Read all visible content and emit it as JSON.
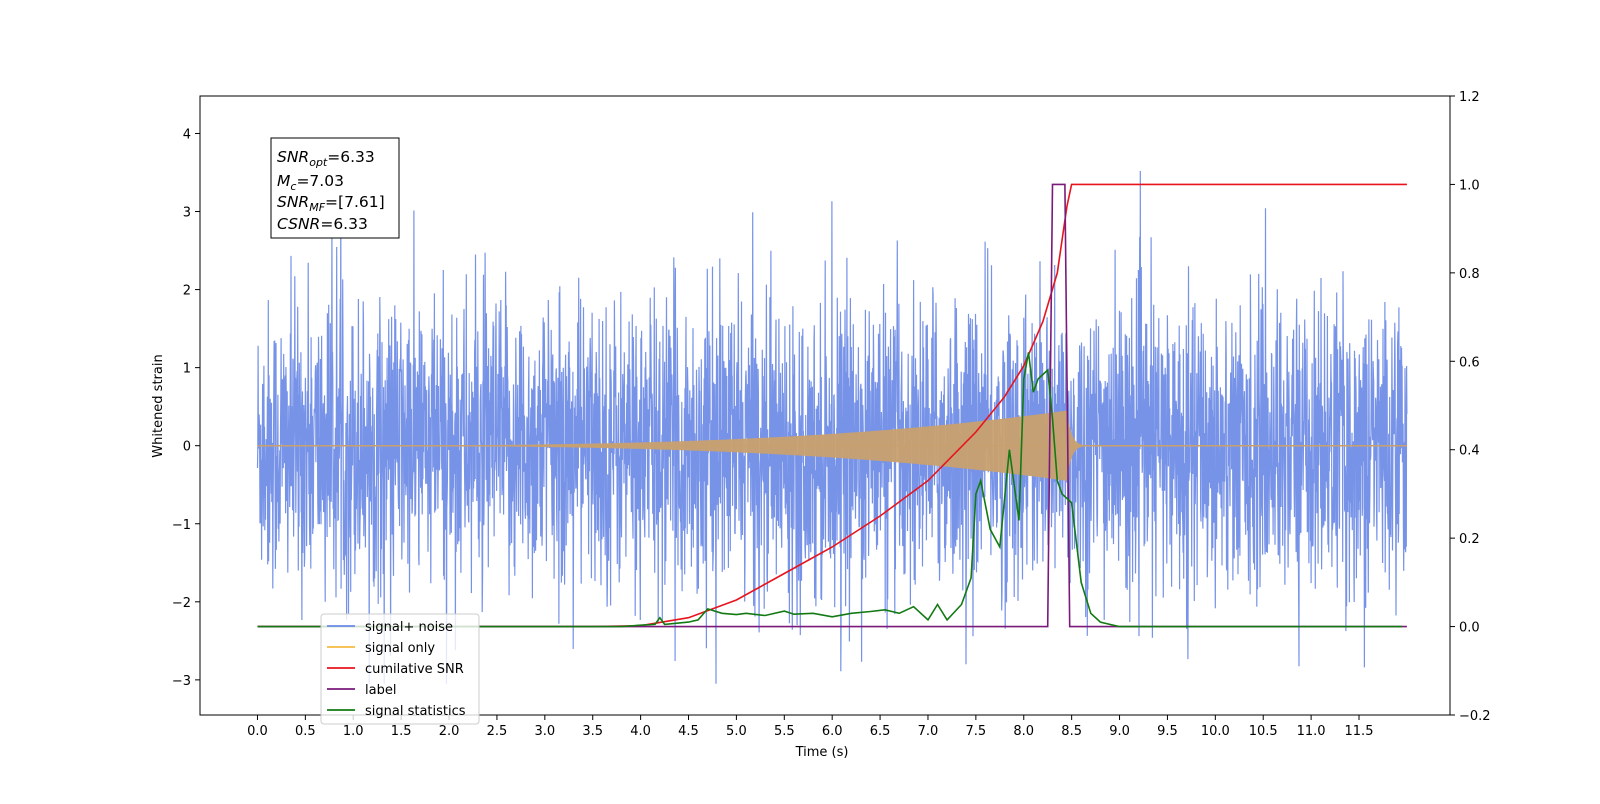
{
  "chart_data": {
    "type": "line",
    "xlabel": "Time (s)",
    "ylabel": "Whitened strain",
    "xlim": [
      -0.6,
      12.45
    ],
    "ylim": [
      -3.45,
      4.48
    ],
    "y2lim": [
      -0.2,
      1.2
    ],
    "x_ticks": [
      "0.0",
      "0.5",
      "1.0",
      "1.5",
      "2.0",
      "2.5",
      "3.0",
      "3.5",
      "4.0",
      "4.5",
      "5.0",
      "5.5",
      "6.0",
      "6.5",
      "7.0",
      "7.5",
      "8.0",
      "8.5",
      "9.0",
      "9.5",
      "10.0",
      "10.5",
      "11.0",
      "11.5"
    ],
    "y_ticks": [
      "4",
      "3",
      "2",
      "1",
      "0",
      "−1",
      "−2",
      "−3"
    ],
    "y2_ticks": [
      "1.2",
      "1.0",
      "0.8",
      "0.6",
      "0.4",
      "0.2",
      "0.0",
      "−0.2"
    ],
    "annotation": {
      "snr_opt": {
        "sym": "SNR",
        "sub": "opt",
        "val": "=6.33"
      },
      "mc": {
        "sym": "M",
        "sub": "c",
        "val": "=7.03"
      },
      "snr_mf": {
        "sym": "SNR",
        "sub": "MF",
        "val": "=[7.61]"
      },
      "csnr": {
        "sym": "CSNR",
        "val": "=6.33"
      }
    },
    "legend_position": "lower-left",
    "grid": false,
    "series": [
      {
        "name": "signal+ noise",
        "color": "#6b8ae6",
        "axis": "left",
        "kind": "noisy",
        "x_range": [
          0,
          12.0
        ],
        "amplitude_typical": [
          -2.3,
          2.3
        ]
      },
      {
        "name": "signal only",
        "color": "#f5b942",
        "axis": "left",
        "kind": "chirp",
        "x_range": [
          0,
          12.0
        ],
        "peak": {
          "x": 8.45,
          "amplitude": 0.45
        }
      },
      {
        "name": "cumilative SNR",
        "color": "#e8141c",
        "axis": "right",
        "points": [
          [
            0,
            0
          ],
          [
            3.5,
            0
          ],
          [
            4.0,
            0.002
          ],
          [
            4.5,
            0.02
          ],
          [
            5.0,
            0.06
          ],
          [
            5.5,
            0.12
          ],
          [
            6.0,
            0.18
          ],
          [
            6.5,
            0.25
          ],
          [
            7.0,
            0.33
          ],
          [
            7.5,
            0.44
          ],
          [
            7.8,
            0.52
          ],
          [
            8.0,
            0.59
          ],
          [
            8.2,
            0.69
          ],
          [
            8.35,
            0.8
          ],
          [
            8.45,
            0.95
          ],
          [
            8.5,
            1.0
          ],
          [
            12.0,
            1.0
          ]
        ]
      },
      {
        "name": "label",
        "color": "#7a1a7a",
        "axis": "right",
        "points": [
          [
            0,
            0
          ],
          [
            8.25,
            0
          ],
          [
            8.3,
            1.0
          ],
          [
            8.43,
            1.0
          ],
          [
            8.48,
            0
          ],
          [
            12.0,
            0
          ]
        ]
      },
      {
        "name": "signal statistics",
        "color": "#137a13",
        "axis": "right",
        "points": [
          [
            0,
            0
          ],
          [
            3.8,
            0.0
          ],
          [
            4.0,
            0.003
          ],
          [
            4.15,
            0.005
          ],
          [
            4.2,
            0.02
          ],
          [
            4.25,
            0.005
          ],
          [
            4.5,
            0.01
          ],
          [
            4.6,
            0.015
          ],
          [
            4.7,
            0.04
          ],
          [
            4.85,
            0.03
          ],
          [
            5.0,
            0.027
          ],
          [
            5.1,
            0.03
          ],
          [
            5.3,
            0.025
          ],
          [
            5.5,
            0.035
          ],
          [
            5.6,
            0.028
          ],
          [
            5.8,
            0.03
          ],
          [
            6.0,
            0.022
          ],
          [
            6.2,
            0.03
          ],
          [
            6.4,
            0.034
          ],
          [
            6.55,
            0.038
          ],
          [
            6.7,
            0.03
          ],
          [
            6.85,
            0.045
          ],
          [
            7.0,
            0.015
          ],
          [
            7.1,
            0.05
          ],
          [
            7.2,
            0.015
          ],
          [
            7.35,
            0.05
          ],
          [
            7.45,
            0.11
          ],
          [
            7.5,
            0.3
          ],
          [
            7.55,
            0.33
          ],
          [
            7.65,
            0.22
          ],
          [
            7.75,
            0.18
          ],
          [
            7.85,
            0.4
          ],
          [
            7.95,
            0.24
          ],
          [
            8.0,
            0.56
          ],
          [
            8.05,
            0.62
          ],
          [
            8.1,
            0.53
          ],
          [
            8.15,
            0.56
          ],
          [
            8.25,
            0.58
          ],
          [
            8.3,
            0.47
          ],
          [
            8.35,
            0.33
          ],
          [
            8.4,
            0.3
          ],
          [
            8.5,
            0.28
          ],
          [
            8.6,
            0.1
          ],
          [
            8.7,
            0.03
          ],
          [
            8.8,
            0.01
          ],
          [
            9.0,
            0.0
          ],
          [
            11.95,
            0.0
          ]
        ]
      }
    ]
  }
}
